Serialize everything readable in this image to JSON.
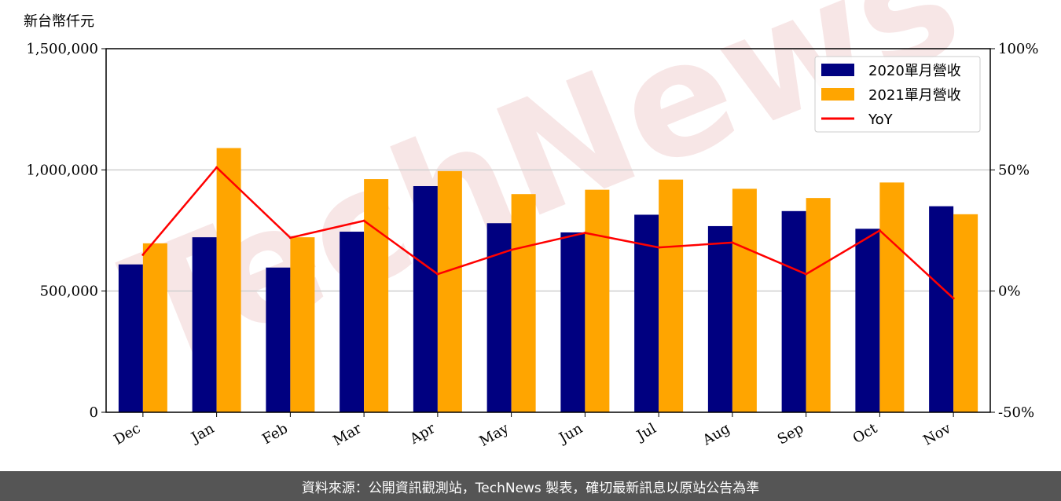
{
  "watermark": "TechNews",
  "footer": "資料來源：公開資訊觀測站，TechNews 製表，確切最新訊息以原站公告為準",
  "chart_data": {
    "type": "bar",
    "unit_label": "新台幣仟元",
    "categories": [
      "Dec",
      "Jan",
      "Feb",
      "Mar",
      "Apr",
      "May",
      "Jun",
      "Jul",
      "Aug",
      "Sep",
      "Oct",
      "Nov"
    ],
    "series": [
      {
        "name": "2020單月營收",
        "type": "bar",
        "axis": "left",
        "color": "#000080",
        "values": [
          610000,
          722000,
          597000,
          745000,
          933000,
          780000,
          742000,
          815000,
          768000,
          830000,
          757000,
          850000
        ]
      },
      {
        "name": "2021單月營收",
        "type": "bar",
        "axis": "left",
        "color": "#FFA500",
        "values": [
          697000,
          1090000,
          722000,
          962000,
          995000,
          900000,
          918000,
          960000,
          922000,
          884000,
          948000,
          817000
        ]
      },
      {
        "name": "YoY",
        "type": "line",
        "axis": "right",
        "color": "#FF0000",
        "values": [
          15,
          51,
          22,
          29,
          7,
          17,
          24,
          18,
          20,
          7,
          25,
          -3
        ]
      }
    ],
    "ylim_left": [
      0,
      1500000
    ],
    "yticks_left": [
      "0",
      "500,000",
      "1,000,000",
      "1,500,000"
    ],
    "ylim_right": [
      -50,
      100
    ],
    "yticks_right": [
      "-50%",
      "0%",
      "50%",
      "100%"
    ],
    "grid": true,
    "legend_position": "upper right"
  }
}
